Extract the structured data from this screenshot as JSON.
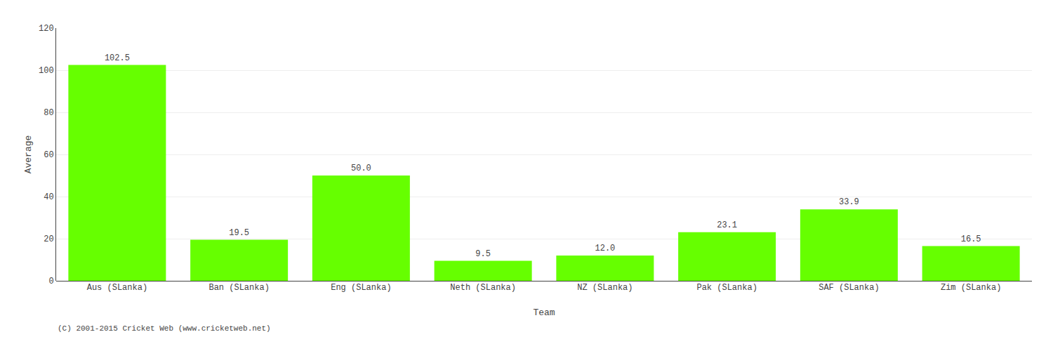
{
  "chart_data": {
    "type": "bar",
    "categories": [
      "Aus (SLanka)",
      "Ban (SLanka)",
      "Eng (SLanka)",
      "Neth (SLanka)",
      "NZ (SLanka)",
      "Pak (SLanka)",
      "SAF (SLanka)",
      "Zim (SLanka)"
    ],
    "values": [
      102.5,
      19.5,
      50.0,
      9.5,
      12.0,
      23.1,
      33.9,
      16.5
    ],
    "value_labels": [
      "102.5",
      "19.5",
      "50.0",
      "9.5",
      "12.0",
      "23.1",
      "33.9",
      "16.5"
    ],
    "data_labels": true,
    "color": "#66ff00",
    "xlabel": "Team",
    "ylabel": "Average",
    "ylim": [
      0,
      120
    ],
    "yticks": [
      0,
      20,
      40,
      60,
      80,
      100,
      120
    ],
    "grid": true,
    "annotations": [
      "(C) 2001-2015 Cricket Web (www.cricketweb.net)"
    ]
  }
}
